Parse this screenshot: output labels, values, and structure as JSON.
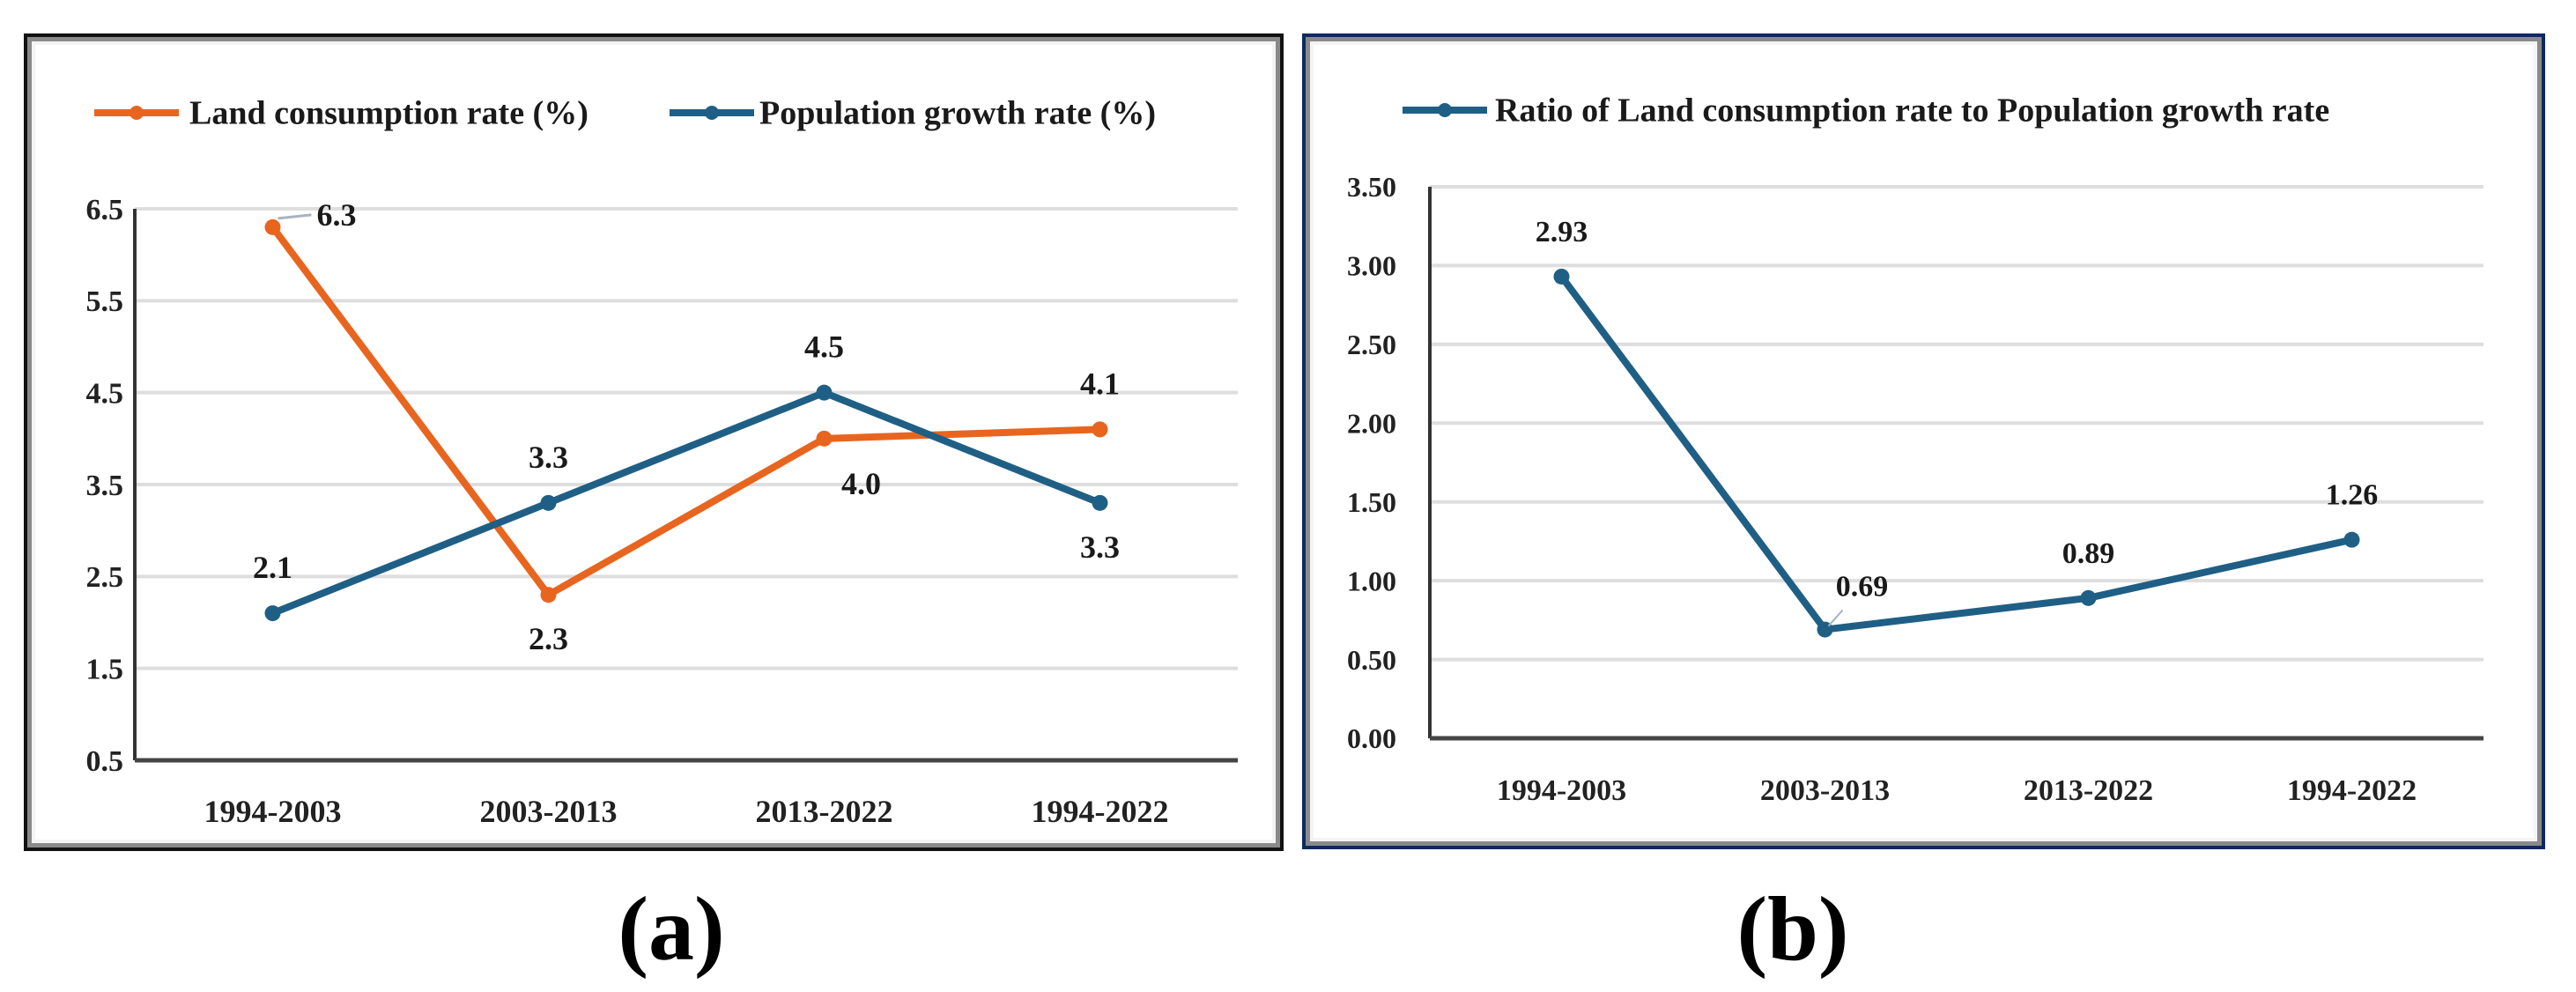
{
  "figure": {
    "captions": {
      "a": "(a)",
      "b": "(b)"
    }
  },
  "chart_data": [
    {
      "type": "line",
      "panel": "a",
      "title": "",
      "xlabel": "",
      "ylabel": "",
      "categories": [
        "1994-2003",
        "2003-2013",
        "2013-2022",
        "1994-2022"
      ],
      "series": [
        {
          "name": "Land consumption rate (%)",
          "color": "#E8651F",
          "values": [
            6.3,
            2.3,
            4.0,
            4.1
          ],
          "labels": [
            "6.3",
            "2.3",
            "4.0",
            "4.1"
          ],
          "label_pos": [
            "right",
            "below",
            "below-right",
            "above"
          ]
        },
        {
          "name": "Population growth rate (%)",
          "color": "#1F5F85",
          "values": [
            2.1,
            3.3,
            4.5,
            3.3
          ],
          "labels": [
            "2.1",
            "3.3",
            "4.5",
            "3.3"
          ],
          "label_pos": [
            "above",
            "above",
            "above",
            "below"
          ]
        }
      ],
      "ylim": [
        0.5,
        6.5
      ],
      "yticks": [
        "0.5",
        "1.5",
        "2.5",
        "3.5",
        "4.5",
        "5.5",
        "6.5"
      ],
      "ytick_values": [
        0.5,
        1.5,
        2.5,
        3.5,
        4.5,
        5.5,
        6.5
      ],
      "grid": true,
      "legend": "top"
    },
    {
      "type": "line",
      "panel": "b",
      "title": "",
      "xlabel": "",
      "ylabel": "",
      "categories": [
        "1994-2003",
        "2003-2013",
        "2013-2022",
        "1994-2022"
      ],
      "series": [
        {
          "name": "Ratio of Land consumption rate to Population growth rate",
          "color": "#1F5F85",
          "values": [
            2.93,
            0.69,
            0.89,
            1.26
          ],
          "labels": [
            "2.93",
            "0.69",
            "0.89",
            "1.26"
          ],
          "label_pos": [
            "above",
            "above-right",
            "above",
            "above"
          ]
        }
      ],
      "ylim": [
        0.0,
        3.5
      ],
      "yticks": [
        "0.00",
        "0.50",
        "1.00",
        "1.50",
        "2.00",
        "2.50",
        "3.00",
        "3.50"
      ],
      "ytick_values": [
        0.0,
        0.5,
        1.0,
        1.5,
        2.0,
        2.5,
        3.0,
        3.5
      ],
      "grid": true,
      "legend": "top"
    }
  ]
}
